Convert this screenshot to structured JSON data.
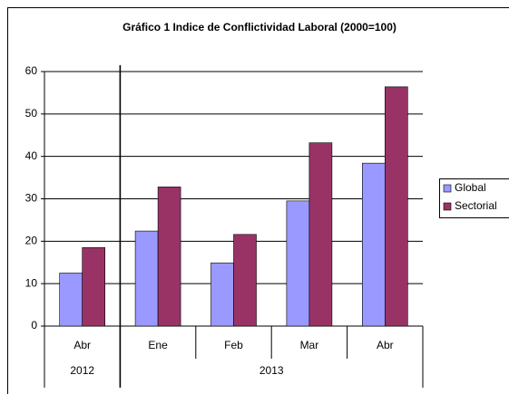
{
  "chart_data": {
    "type": "bar",
    "title": "Gráfico 1 Indice de Conflictividad Laboral (2000=100)",
    "categories": [
      "Abr",
      "Ene",
      "Feb",
      "Mar",
      "Abr"
    ],
    "groups": [
      {
        "label": "2012",
        "count": 1
      },
      {
        "label": "2013",
        "count": 4
      }
    ],
    "series": [
      {
        "name": "Global",
        "color": "#9999ff",
        "values": [
          12.5,
          22.4,
          14.9,
          29.5,
          38.4
        ]
      },
      {
        "name": "Sectorial",
        "color": "#993366",
        "values": [
          18.5,
          32.8,
          21.6,
          43.2,
          56.4
        ]
      }
    ],
    "ylim": [
      0,
      60
    ],
    "yticks": [
      0,
      10,
      20,
      30,
      40,
      50,
      60
    ],
    "grid": true,
    "legend": "right"
  }
}
